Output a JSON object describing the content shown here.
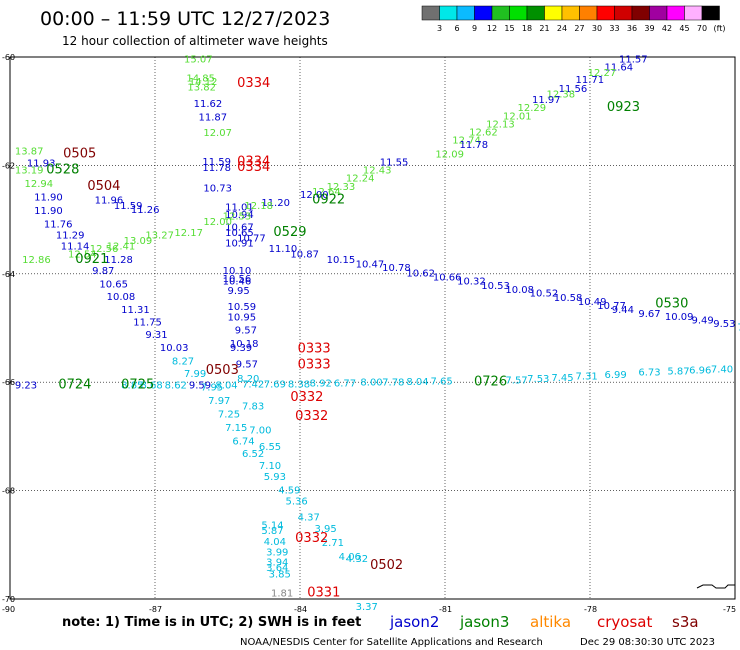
{
  "header": {
    "title": "00:00 – 11:59 UTC 12/27/2023",
    "subtitle": "12 hour collection of altimeter wave heights"
  },
  "color_scale": {
    "colors": [
      "#707070",
      "#00e8e8",
      "#0bbbff",
      "#0000ff",
      "#20c020",
      "#00e000",
      "#009000",
      "#ffff00",
      "#ffc000",
      "#ff8000",
      "#ff0000",
      "#d00000",
      "#800000",
      "#a000a0",
      "#ff00ff",
      "#ffb0ff",
      "#000000"
    ],
    "labels": [
      "3",
      "6",
      "9",
      "12",
      "15",
      "18",
      "21",
      "24",
      "27",
      "30",
      "33",
      "36",
      "39",
      "42",
      "45",
      "70"
    ],
    "unit": "(ft)"
  },
  "axes": {
    "lat_labels": [
      "-60",
      "-62",
      "-64",
      "-66",
      "-68",
      "-70"
    ],
    "lon_labels": [
      "-90",
      "-87",
      "-84",
      "-81",
      "-78",
      "-75"
    ]
  },
  "colors": {
    "jason2": "#0000cc",
    "jason3": "#008000",
    "altika": "#ff8800",
    "cryosat": "#dd0000",
    "s3a": "#800000",
    "c_light_green": "#55dd33",
    "c_blue": "#0000cc",
    "c_cyan": "#00bbdd",
    "c_gray": "#888888"
  },
  "points": [
    {
      "v": "15.07",
      "c": "c_light_green",
      "lat": -60.1,
      "lon": -86.4
    },
    {
      "v": "14.85",
      "c": "c_light_green",
      "lat": -60.45,
      "lon": -86.35
    },
    {
      "v": "14.12",
      "c": "c_light_green",
      "lat": -60.52,
      "lon": -86.3
    },
    {
      "v": "13.82",
      "c": "c_light_green",
      "lat": -60.62,
      "lon": -86.33
    },
    {
      "v": "11.62",
      "c": "c_blue",
      "lat": -60.92,
      "lon": -86.2
    },
    {
      "v": "11.87",
      "c": "c_blue",
      "lat": -61.17,
      "lon": -86.1
    },
    {
      "v": "12.07",
      "c": "c_light_green",
      "lat": -61.46,
      "lon": -86.0
    },
    {
      "v": "11.59",
      "c": "c_blue",
      "lat": -61.99,
      "lon": -86.02
    },
    {
      "v": "11.78",
      "c": "c_blue",
      "lat": -62.1,
      "lon": -86.02
    },
    {
      "v": "10.73",
      "c": "c_blue",
      "lat": -62.48,
      "lon": -86.0
    },
    {
      "v": "11.01",
      "c": "c_blue",
      "lat": -62.83,
      "lon": -85.55
    },
    {
      "v": "10.94",
      "c": "c_blue",
      "lat": -62.97,
      "lon": -85.55
    },
    {
      "v": "10.67",
      "c": "c_blue",
      "lat": -63.2,
      "lon": -85.55
    },
    {
      "v": "10.65",
      "c": "c_blue",
      "lat": -63.3,
      "lon": -85.55
    },
    {
      "v": "10.77",
      "c": "c_blue",
      "lat": -63.4,
      "lon": -85.3
    },
    {
      "v": "10.91",
      "c": "c_blue",
      "lat": -63.5,
      "lon": -85.55
    },
    {
      "v": "10.10",
      "c": "c_blue",
      "lat": -64.0,
      "lon": -85.6
    },
    {
      "v": "10.56",
      "c": "c_blue",
      "lat": -64.15,
      "lon": -85.6
    },
    {
      "v": "10.46",
      "c": "c_blue",
      "lat": -64.2,
      "lon": -85.6
    },
    {
      "v": "9.95",
      "c": "c_blue",
      "lat": -64.37,
      "lon": -85.5
    },
    {
      "v": "10.59",
      "c": "c_blue",
      "lat": -64.67,
      "lon": -85.5
    },
    {
      "v": "10.95",
      "c": "c_blue",
      "lat": -64.86,
      "lon": -85.5
    },
    {
      "v": "9.57",
      "c": "c_blue",
      "lat": -65.1,
      "lon": -85.35
    },
    {
      "v": "10.18",
      "c": "c_blue",
      "lat": -65.35,
      "lon": -85.45
    },
    {
      "v": "9.39",
      "c": "c_blue",
      "lat": -65.42,
      "lon": -85.45
    },
    {
      "v": "9.57",
      "c": "c_blue",
      "lat": -65.73,
      "lon": -85.33
    },
    {
      "v": "8.20",
      "c": "c_cyan",
      "lat": -66.0,
      "lon": -85.3
    },
    {
      "v": "7.83",
      "c": "c_cyan",
      "lat": -66.5,
      "lon": -85.2
    },
    {
      "v": "7.00",
      "c": "c_cyan",
      "lat": -66.95,
      "lon": -85.05
    },
    {
      "v": "6.55",
      "c": "c_cyan",
      "lat": -67.25,
      "lon": -84.85
    },
    {
      "v": "7.10",
      "c": "c_cyan",
      "lat": -67.6,
      "lon": -84.85
    },
    {
      "v": "5.93",
      "c": "c_cyan",
      "lat": -67.8,
      "lon": -84.75
    },
    {
      "v": "4.59",
      "c": "c_cyan",
      "lat": -68.05,
      "lon": -84.45
    },
    {
      "v": "5.36",
      "c": "c_cyan",
      "lat": -68.26,
      "lon": -84.3
    },
    {
      "v": "4.37",
      "c": "c_cyan",
      "lat": -68.55,
      "lon": -84.05
    },
    {
      "v": "3.95",
      "c": "c_cyan",
      "lat": -68.76,
      "lon": -83.7
    },
    {
      "v": "2.71",
      "c": "c_cyan",
      "lat": -69.02,
      "lon": -83.55
    },
    {
      "v": "4.06",
      "c": "c_cyan",
      "lat": -69.28,
      "lon": -83.2
    },
    {
      "v": "4.32",
      "c": "c_cyan",
      "lat": -69.32,
      "lon": -83.05
    },
    {
      "v": "5.14",
      "c": "c_cyan",
      "lat": -68.7,
      "lon": -84.8
    },
    {
      "v": "5.87",
      "c": "c_cyan",
      "lat": -68.8,
      "lon": -84.8
    },
    {
      "v": "4.04",
      "c": "c_cyan",
      "lat": -69.0,
      "lon": -84.75
    },
    {
      "v": "3.99",
      "c": "c_cyan",
      "lat": -69.2,
      "lon": -84.7
    },
    {
      "v": "3.94",
      "c": "c_cyan",
      "lat": -69.38,
      "lon": -84.7
    },
    {
      "v": "3.64",
      "c": "c_cyan",
      "lat": -69.48,
      "lon": -84.7
    },
    {
      "v": "3.85",
      "c": "c_cyan",
      "lat": -69.6,
      "lon": -84.65
    },
    {
      "v": "1.81",
      "c": "c_gray",
      "lat": -69.95,
      "lon": -84.6
    },
    {
      "v": "3.37",
      "c": "c_cyan",
      "lat": -70.2,
      "lon": -82.85
    },
    {
      "v": "13.87",
      "c": "c_light_green",
      "lat": -61.8,
      "lon": -89.9
    },
    {
      "v": "11.93",
      "c": "c_blue",
      "lat": -62.02,
      "lon": -89.65
    },
    {
      "v": "13.19",
      "c": "c_light_green",
      "lat": -62.15,
      "lon": -89.9
    },
    {
      "v": "12.94",
      "c": "c_light_green",
      "lat": -62.4,
      "lon": -89.7
    },
    {
      "v": "11.90",
      "c": "c_blue",
      "lat": -62.65,
      "lon": -89.5
    },
    {
      "v": "11.96",
      "c": "c_blue",
      "lat": -62.7,
      "lon": -88.25
    },
    {
      "v": "11.59",
      "c": "c_blue",
      "lat": -62.8,
      "lon": -87.85
    },
    {
      "v": "11.26",
      "c": "c_blue",
      "lat": -62.88,
      "lon": -87.5
    },
    {
      "v": "11.90",
      "c": "c_blue",
      "lat": -62.9,
      "lon": -89.5
    },
    {
      "v": "11.76",
      "c": "c_blue",
      "lat": -63.15,
      "lon": -89.3
    },
    {
      "v": "11.29",
      "c": "c_blue",
      "lat": -63.35,
      "lon": -89.05
    },
    {
      "v": "11.14",
      "c": "c_blue",
      "lat": -63.55,
      "lon": -88.95
    },
    {
      "v": "11.28",
      "c": "c_blue",
      "lat": -63.8,
      "lon": -88.05
    },
    {
      "v": "9.87",
      "c": "c_blue",
      "lat": -64.0,
      "lon": -88.3
    },
    {
      "v": "10.65",
      "c": "c_blue",
      "lat": -64.25,
      "lon": -88.15
    },
    {
      "v": "10.08",
      "c": "c_blue",
      "lat": -64.48,
      "lon": -88.0
    },
    {
      "v": "11.31",
      "c": "c_blue",
      "lat": -64.72,
      "lon": -87.7
    },
    {
      "v": "11.75",
      "c": "c_blue",
      "lat": -64.95,
      "lon": -87.45
    },
    {
      "v": "9.31",
      "c": "c_blue",
      "lat": -65.18,
      "lon": -87.2
    },
    {
      "v": "10.03",
      "c": "c_blue",
      "lat": -65.42,
      "lon": -86.9
    },
    {
      "v": "8.27",
      "c": "c_cyan",
      "lat": -65.67,
      "lon": -86.65
    },
    {
      "v": "7.99",
      "c": "c_cyan",
      "lat": -65.9,
      "lon": -86.4
    },
    {
      "v": "7.95",
      "c": "c_cyan",
      "lat": -66.15,
      "lon": -86.05
    },
    {
      "v": "7.97",
      "c": "c_cyan",
      "lat": -66.4,
      "lon": -85.9
    },
    {
      "v": "7.25",
      "c": "c_cyan",
      "lat": -66.65,
      "lon": -85.7
    },
    {
      "v": "7.15",
      "c": "c_cyan",
      "lat": -66.9,
      "lon": -85.55
    },
    {
      "v": "6.74",
      "c": "c_cyan",
      "lat": -67.15,
      "lon": -85.4
    },
    {
      "v": "6.52",
      "c": "c_cyan",
      "lat": -67.38,
      "lon": -85.2
    },
    {
      "v": "11.57",
      "c": "c_blue",
      "lat": -60.1,
      "lon": -77.4
    },
    {
      "v": "11.64",
      "c": "c_blue",
      "lat": -60.25,
      "lon": -77.7
    },
    {
      "v": "12.27",
      "c": "c_light_green",
      "lat": -60.35,
      "lon": -78.05
    },
    {
      "v": "11.71",
      "c": "c_blue",
      "lat": -60.48,
      "lon": -78.3
    },
    {
      "v": "11.56",
      "c": "c_blue",
      "lat": -60.65,
      "lon": -78.65
    },
    {
      "v": "12.38",
      "c": "c_light_green",
      "lat": -60.75,
      "lon": -78.9
    },
    {
      "v": "11.97",
      "c": "c_blue",
      "lat": -60.85,
      "lon": -79.2
    },
    {
      "v": "12.29",
      "c": "c_light_green",
      "lat": -61.0,
      "lon": -79.5
    },
    {
      "v": "12.01",
      "c": "c_light_green",
      "lat": -61.15,
      "lon": -79.8
    },
    {
      "v": "12.13",
      "c": "c_light_green",
      "lat": -61.3,
      "lon": -80.15
    },
    {
      "v": "12.62",
      "c": "c_light_green",
      "lat": -61.45,
      "lon": -80.5
    },
    {
      "v": "12.74",
      "c": "c_light_green",
      "lat": -61.6,
      "lon": -80.85
    },
    {
      "v": "11.78",
      "c": "c_blue",
      "lat": -61.68,
      "lon": -80.7
    },
    {
      "v": "12.09",
      "c": "c_light_green",
      "lat": -61.85,
      "lon": -81.2
    },
    {
      "v": "11.55",
      "c": "c_blue",
      "lat": -62.0,
      "lon": -82.35
    },
    {
      "v": "12.43",
      "c": "c_light_green",
      "lat": -62.15,
      "lon": -82.7
    },
    {
      "v": "12.24",
      "c": "c_light_green",
      "lat": -62.3,
      "lon": -83.05
    },
    {
      "v": "12.33",
      "c": "c_light_green",
      "lat": -62.45,
      "lon": -83.45
    },
    {
      "v": "12.64",
      "c": "c_light_green",
      "lat": -62.55,
      "lon": -83.75
    },
    {
      "v": "12.00",
      "c": "c_blue",
      "lat": -62.6,
      "lon": -84.0
    },
    {
      "v": "11.20",
      "c": "c_blue",
      "lat": -62.75,
      "lon": -84.8
    },
    {
      "v": "12.18",
      "c": "c_light_green",
      "lat": -62.8,
      "lon": -85.15
    },
    {
      "v": "12.53",
      "c": "c_light_green",
      "lat": -63.0,
      "lon": -85.6
    },
    {
      "v": "12.00",
      "c": "c_light_green",
      "lat": -63.1,
      "lon": -86.0
    },
    {
      "v": "12.17",
      "c": "c_light_green",
      "lat": -63.3,
      "lon": -86.6
    },
    {
      "v": "13.27",
      "c": "c_light_green",
      "lat": -63.35,
      "lon": -87.2
    },
    {
      "v": "13.09",
      "c": "c_light_green",
      "lat": -63.45,
      "lon": -87.65
    },
    {
      "v": "12.41",
      "c": "c_light_green",
      "lat": -63.55,
      "lon": -88.0
    },
    {
      "v": "12.56",
      "c": "c_light_green",
      "lat": -63.6,
      "lon": -88.35
    },
    {
      "v": "12.54",
      "c": "c_light_green",
      "lat": -63.7,
      "lon": -88.8
    },
    {
      "v": "12.86",
      "c": "c_light_green",
      "lat": -63.8,
      "lon": -89.75
    },
    {
      "v": "11.10",
      "c": "c_blue",
      "lat": -63.6,
      "lon": -84.65
    },
    {
      "v": "10.87",
      "c": "c_blue",
      "lat": -63.7,
      "lon": -84.2
    },
    {
      "v": "10.15",
      "c": "c_blue",
      "lat": -63.8,
      "lon": -83.45
    },
    {
      "v": "10.47",
      "c": "c_blue",
      "lat": -63.88,
      "lon": -82.85
    },
    {
      "v": "10.78",
      "c": "c_blue",
      "lat": -63.95,
      "lon": -82.3
    },
    {
      "v": "10.62",
      "c": "c_blue",
      "lat": -64.05,
      "lon": -81.8
    },
    {
      "v": "10.66",
      "c": "c_blue",
      "lat": -64.12,
      "lon": -81.25
    },
    {
      "v": "10.32",
      "c": "c_blue",
      "lat": -64.2,
      "lon": -80.75
    },
    {
      "v": "10.53",
      "c": "c_blue",
      "lat": -64.28,
      "lon": -80.25
    },
    {
      "v": "10.08",
      "c": "c_blue",
      "lat": -64.35,
      "lon": -79.75
    },
    {
      "v": "10.52",
      "c": "c_blue",
      "lat": -64.42,
      "lon": -79.25
    },
    {
      "v": "10.58",
      "c": "c_blue",
      "lat": -64.5,
      "lon": -78.75
    },
    {
      "v": "10.49",
      "c": "c_blue",
      "lat": -64.58,
      "lon": -78.25
    },
    {
      "v": "10.77",
      "c": "c_blue",
      "lat": -64.65,
      "lon": -77.85
    },
    {
      "v": "9.44",
      "c": "c_blue",
      "lat": -64.72,
      "lon": -77.55
    },
    {
      "v": "9.67",
      "c": "c_blue",
      "lat": -64.8,
      "lon": -77.0
    },
    {
      "v": "10.09",
      "c": "c_blue",
      "lat": -64.85,
      "lon": -76.45
    },
    {
      "v": "9.49",
      "c": "c_blue",
      "lat": -64.92,
      "lon": -75.9
    },
    {
      "v": "9.53",
      "c": "c_blue",
      "lat": -64.98,
      "lon": -75.45
    },
    {
      "v": "7.84",
      "c": "c_cyan",
      "lat": -65.05,
      "lon": -74.95
    },
    {
      "v": "9.23",
      "c": "c_blue",
      "lat": -66.12,
      "lon": -89.9
    },
    {
      "v": "9.59",
      "c": "c_blue",
      "lat": -66.12,
      "lon": -86.3
    },
    {
      "v": "8.62",
      "c": "c_cyan",
      "lat": -66.12,
      "lon": -86.8
    },
    {
      "v": "8.68",
      "c": "c_cyan",
      "lat": -66.12,
      "lon": -87.3
    },
    {
      "v": "8.85",
      "c": "c_cyan",
      "lat": -66.12,
      "lon": -87.7
    },
    {
      "v": "8.04",
      "c": "c_cyan",
      "lat": -66.12,
      "lon": -85.75
    },
    {
      "v": "7.42",
      "c": "c_cyan",
      "lat": -66.1,
      "lon": -85.2
    },
    {
      "v": "7.69",
      "c": "c_cyan",
      "lat": -66.1,
      "lon": -84.75
    },
    {
      "v": "8.38",
      "c": "c_cyan",
      "lat": -66.1,
      "lon": -84.25
    },
    {
      "v": "8.92",
      "c": "c_cyan",
      "lat": -66.08,
      "lon": -83.8
    },
    {
      "v": "6.77",
      "c": "c_cyan",
      "lat": -66.08,
      "lon": -83.3
    },
    {
      "v": "8.00",
      "c": "c_cyan",
      "lat": -66.06,
      "lon": -82.75
    },
    {
      "v": "7.78",
      "c": "c_cyan",
      "lat": -66.06,
      "lon": -82.3
    },
    {
      "v": "8.04",
      "c": "c_cyan",
      "lat": -66.05,
      "lon": -81.8
    },
    {
      "v": "7.65",
      "c": "c_cyan",
      "lat": -66.04,
      "lon": -81.3
    },
    {
      "v": "7.57",
      "c": "c_cyan",
      "lat": -66.02,
      "lon": -79.75
    },
    {
      "v": "7.53",
      "c": "c_cyan",
      "lat": -66.0,
      "lon": -79.3
    },
    {
      "v": "7.45",
      "c": "c_cyan",
      "lat": -65.98,
      "lon": -78.8
    },
    {
      "v": "7.31",
      "c": "c_cyan",
      "lat": -65.95,
      "lon": -78.3
    },
    {
      "v": "6.99",
      "c": "c_cyan",
      "lat": -65.92,
      "lon": -77.7
    },
    {
      "v": "6.73",
      "c": "c_cyan",
      "lat": -65.88,
      "lon": -77.0
    },
    {
      "v": "5.87",
      "c": "c_cyan",
      "lat": -65.86,
      "lon": -76.4
    },
    {
      "v": "6.96",
      "c": "c_cyan",
      "lat": -65.84,
      "lon": -75.95
    },
    {
      "v": "7.40",
      "c": "c_cyan",
      "lat": -65.82,
      "lon": -75.5
    }
  ],
  "passes": [
    {
      "t": "0334",
      "c": "cryosat",
      "lat": -60.55,
      "lon": -85.3
    },
    {
      "t": "0334",
      "c": "cryosat",
      "lat": -62.0,
      "lon": -85.3
    },
    {
      "t": "0334",
      "c": "cryosat",
      "lat": -62.1,
      "lon": -85.3
    },
    {
      "t": "0505",
      "c": "s3a",
      "lat": -61.85,
      "lon": -88.9
    },
    {
      "t": "0528",
      "c": "jason3",
      "lat": -62.15,
      "lon": -89.25
    },
    {
      "t": "0504",
      "c": "s3a",
      "lat": -62.45,
      "lon": -88.4
    },
    {
      "t": "0922",
      "c": "jason3",
      "lat": -62.7,
      "lon": -83.75
    },
    {
      "t": "0529",
      "c": "jason3",
      "lat": -63.3,
      "lon": -84.55
    },
    {
      "t": "0921",
      "c": "jason3",
      "lat": -63.8,
      "lon": -88.65
    },
    {
      "t": "0923",
      "c": "jason3",
      "lat": -61.0,
      "lon": -77.65
    },
    {
      "t": "0530",
      "c": "jason3",
      "lat": -64.62,
      "lon": -76.65
    },
    {
      "t": "0333",
      "c": "cryosat",
      "lat": -65.45,
      "lon": -84.05
    },
    {
      "t": "0333",
      "c": "cryosat",
      "lat": -65.75,
      "lon": -84.05
    },
    {
      "t": "0503",
      "c": "s3a",
      "lat": -65.85,
      "lon": -85.95
    },
    {
      "t": "0724",
      "c": "jason3",
      "lat": -66.12,
      "lon": -89.0
    },
    {
      "t": "0725",
      "c": "jason3",
      "lat": -66.12,
      "lon": -87.7
    },
    {
      "t": "0726",
      "c": "jason3",
      "lat": -66.06,
      "lon": -80.4
    },
    {
      "t": "0332",
      "c": "cryosat",
      "lat": -66.35,
      "lon": -84.2
    },
    {
      "t": "0332",
      "c": "cryosat",
      "lat": -66.7,
      "lon": -84.1
    },
    {
      "t": "0332",
      "c": "cryosat",
      "lat": -68.95,
      "lon": -84.1
    },
    {
      "t": "0502",
      "c": "s3a",
      "lat": -69.45,
      "lon": -82.55
    },
    {
      "t": "0331",
      "c": "cryosat",
      "lat": -69.95,
      "lon": -83.85
    }
  ],
  "footer": {
    "note": "note:  1)  Time is in UTC;  2)  SWH is in feet",
    "satellites": [
      {
        "name": "jason2",
        "c": "jason2"
      },
      {
        "name": "jason3",
        "c": "jason3"
      },
      {
        "name": "altika",
        "c": "altika"
      },
      {
        "name": "cryosat",
        "c": "cryosat"
      },
      {
        "name": "s3a",
        "c": "s3a"
      }
    ],
    "credit": "NOAA/NESDIS Center for Satellite Applications and Research",
    "generated": "Dec 29 08:30:30 UTC 2023"
  }
}
